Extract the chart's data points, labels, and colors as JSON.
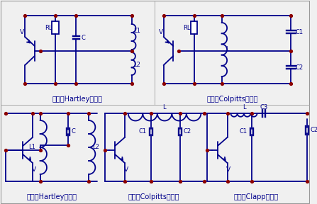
{
  "bg_color": "#f0f0f0",
  "line_color": "#00008B",
  "dot_color": "#8B0000",
  "label_color": "#00008B",
  "lw": 1.3,
  "circuit_labels": [
    "共基极Hartley振荡器",
    "共基极Colpitts振荡器",
    "共射极Hartley振荡器",
    "共射极Colpitts振荡器",
    "共射极Clapp振荡器"
  ]
}
